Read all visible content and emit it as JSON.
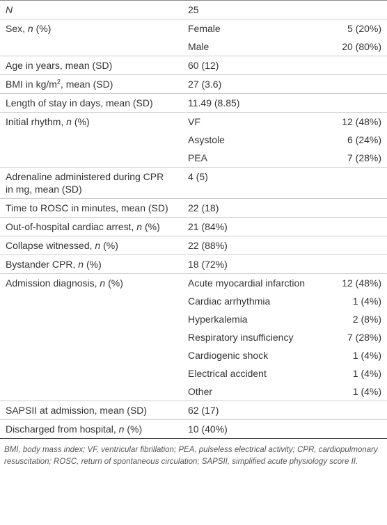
{
  "table": {
    "groups": [
      {
        "label": [
          {
            "text": "N",
            "style": "italic"
          }
        ],
        "value": "25"
      },
      {
        "label": [
          {
            "text": "Sex, "
          },
          {
            "text": "n",
            "style": "italic"
          },
          {
            "text": " (%)"
          }
        ],
        "items": [
          {
            "name": "Female",
            "value": "5 (20%)"
          },
          {
            "name": "Male",
            "value": "20 (80%)"
          }
        ]
      },
      {
        "label": [
          {
            "text": "Age in years, mean (SD)"
          }
        ],
        "value": "60 (12)"
      },
      {
        "label": [
          {
            "text": "BMI in kg/m"
          },
          {
            "text": "2",
            "style": "sup"
          },
          {
            "text": ", mean (SD)"
          }
        ],
        "value": "27 (3.6)"
      },
      {
        "label": [
          {
            "text": "Length of stay in days, mean (SD)"
          }
        ],
        "value": "11.49 (8.85)"
      },
      {
        "label": [
          {
            "text": "Initial rhythm, "
          },
          {
            "text": "n",
            "style": "italic"
          },
          {
            "text": " (%)"
          }
        ],
        "items": [
          {
            "name": "VF",
            "value": "12 (48%)"
          },
          {
            "name": "Asystole",
            "value": "6 (24%)"
          },
          {
            "name": "PEA",
            "value": "7 (28%)"
          }
        ]
      },
      {
        "label": [
          {
            "text": "Adrenaline administered during CPR in mg, mean (SD)"
          }
        ],
        "value": "4 (5)"
      },
      {
        "label": [
          {
            "text": "Time to ROSC in minutes, mean (SD)"
          }
        ],
        "value": "22 (18)"
      },
      {
        "label": [
          {
            "text": "Out-of-hospital cardiac arrest, "
          },
          {
            "text": "n",
            "style": "italic"
          },
          {
            "text": " (%)"
          }
        ],
        "value": "21 (84%)"
      },
      {
        "label": [
          {
            "text": "Collapse witnessed, "
          },
          {
            "text": "n",
            "style": "italic"
          },
          {
            "text": " (%)"
          }
        ],
        "value": "22 (88%)"
      },
      {
        "label": [
          {
            "text": "Bystander CPR, "
          },
          {
            "text": "n",
            "style": "italic"
          },
          {
            "text": " (%)"
          }
        ],
        "value": "18 (72%)"
      },
      {
        "label": [
          {
            "text": "Admission diagnosis, "
          },
          {
            "text": "n",
            "style": "italic"
          },
          {
            "text": " (%)"
          }
        ],
        "items": [
          {
            "name": "Acute myocardial infarction",
            "value": "12 (48%)"
          },
          {
            "name": "Cardiac arrhythmia",
            "value": "1 (4%)"
          },
          {
            "name": "Hyperkalemia",
            "value": "2 (8%)"
          },
          {
            "name": "Respiratory insufficiency",
            "value": "7 (28%)"
          },
          {
            "name": "Cardiogenic shock",
            "value": "1 (4%)"
          },
          {
            "name": "Electrical accident",
            "value": "1 (4%)"
          },
          {
            "name": "Other",
            "value": "1 (4%)"
          }
        ]
      },
      {
        "label": [
          {
            "text": "SAPSII at admission, mean (SD)"
          }
        ],
        "value": "62 (17)"
      },
      {
        "label": [
          {
            "text": "Discharged from hospital, "
          },
          {
            "text": "n",
            "style": "italic"
          },
          {
            "text": " (%)"
          }
        ],
        "value": "10 (40%)"
      }
    ],
    "footnote": "BMI, body mass index; VF, ventricular fibrillation; PEA, pulseless electrical activity; CPR, cardiopulmonary resuscitation; ROSC, return of spontaneous circulation; SAPSII, simplified acute physiology score II."
  }
}
